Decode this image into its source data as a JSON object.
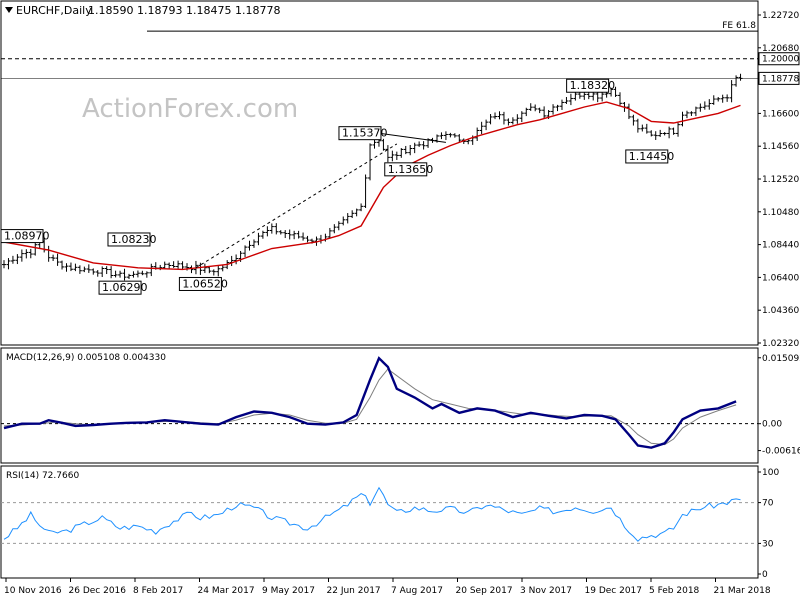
{
  "header": {
    "symbol": "EURCHF,Daily",
    "ohlc": "1.18590 1.18793 1.18475 1.18778",
    "watermark": "ActionForex.com"
  },
  "colors": {
    "candle": "#000000",
    "ma": "#cc0000",
    "macd": "#000080",
    "signal": "#808080",
    "rsi": "#1e90ff",
    "grid": "#000000"
  },
  "chart_data": [
    {
      "type": "line",
      "title": "EURCHF,Daily 1.18590 1.18793 1.18475 1.18778",
      "price_axis": {
        "ticks": [
          "1.22720",
          "1.20680",
          "1.18640",
          "1.16600",
          "1.14560",
          "1.12520",
          "1.10480",
          "1.08440",
          "1.06400",
          "1.04360",
          "1.02320"
        ],
        "ylim": [
          1.0232,
          1.2272
        ]
      },
      "x_ticks": [
        "10 Nov 2016",
        "26 Dec 2016",
        "8 Feb 2017",
        "24 Mar 2017",
        "9 May 2017",
        "22 Jun 2017",
        "7 Aug 2017",
        "20 Sep 2017",
        "3 Nov 2017",
        "19 Dec 2017",
        "5 Feb 2018",
        "21 Mar 2018"
      ],
      "levels": [
        {
          "label": "FE 61.8",
          "value": 1.2172,
          "style": "solid"
        },
        {
          "label": "1.20000",
          "value": 1.2,
          "style": "dashed"
        },
        {
          "label": "1.18778",
          "value": 1.18778,
          "style": "solid"
        }
      ],
      "annotations": [
        "1.08970",
        "1.08230",
        "1.06290",
        "1.06520",
        "1.15370",
        "1.13650",
        "1.18320",
        "1.14450"
      ],
      "series": [
        {
          "name": "EURCHF",
          "points": [
            [
              0,
              1.072
            ],
            [
              2,
              1.076
            ],
            [
              4,
              1.079
            ],
            [
              6,
              1.08
            ],
            [
              8,
              1.086
            ],
            [
              10,
              1.077
            ],
            [
              12,
              1.073
            ],
            [
              15,
              1.07
            ],
            [
              18,
              1.069
            ],
            [
              22,
              1.068
            ],
            [
              26,
              1.065
            ],
            [
              30,
              1.066
            ],
            [
              33,
              1.069
            ],
            [
              36,
              1.072
            ],
            [
              38,
              1.072
            ],
            [
              40,
              1.071
            ],
            [
              43,
              1.07
            ],
            [
              46,
              1.068
            ],
            [
              48,
              1.069
            ],
            [
              51,
              1.074
            ],
            [
              54,
              1.083
            ],
            [
              57,
              1.09
            ],
            [
              60,
              1.094
            ],
            [
              62,
              1.092
            ],
            [
              65,
              1.09
            ],
            [
              68,
              1.088
            ],
            [
              70,
              1.087
            ],
            [
              72,
              1.09
            ],
            [
              75,
              1.096
            ],
            [
              78,
              1.103
            ],
            [
              80,
              1.108
            ],
            [
              82,
              1.147
            ],
            [
              84,
              1.15
            ],
            [
              86,
              1.138
            ],
            [
              89,
              1.142
            ],
            [
              92,
              1.146
            ],
            [
              95,
              1.148
            ],
            [
              98,
              1.152
            ],
            [
              100,
              1.154
            ],
            [
              102,
              1.148
            ],
            [
              105,
              1.152
            ],
            [
              108,
              1.16
            ],
            [
              110,
              1.165
            ],
            [
              113,
              1.162
            ],
            [
              116,
              1.166
            ],
            [
              119,
              1.17
            ],
            [
              121,
              1.166
            ],
            [
              124,
              1.172
            ],
            [
              127,
              1.176
            ],
            [
              130,
              1.179
            ],
            [
              133,
              1.177
            ],
            [
              136,
              1.181
            ],
            [
              138,
              1.174
            ],
            [
              140,
              1.164
            ],
            [
              142,
              1.157
            ],
            [
              145,
              1.152
            ],
            [
              148,
              1.155
            ],
            [
              150,
              1.155
            ],
            [
              152,
              1.166
            ],
            [
              155,
              1.169
            ],
            [
              158,
              1.172
            ],
            [
              160,
              1.175
            ],
            [
              162,
              1.177
            ],
            [
              164,
              1.1878
            ]
          ]
        },
        {
          "name": "MA",
          "points": [
            [
              0,
              1.086
            ],
            [
              10,
              1.081
            ],
            [
              20,
              1.073
            ],
            [
              30,
              1.07
            ],
            [
              40,
              1.069
            ],
            [
              50,
              1.072
            ],
            [
              60,
              1.082
            ],
            [
              70,
              1.086
            ],
            [
              75,
              1.09
            ],
            [
              80,
              1.096
            ],
            [
              85,
              1.12
            ],
            [
              90,
              1.133
            ],
            [
              95,
              1.14
            ],
            [
              100,
              1.146
            ],
            [
              105,
              1.151
            ],
            [
              110,
              1.155
            ],
            [
              115,
              1.159
            ],
            [
              120,
              1.162
            ],
            [
              125,
              1.166
            ],
            [
              130,
              1.17
            ],
            [
              135,
              1.173
            ],
            [
              140,
              1.169
            ],
            [
              145,
              1.161
            ],
            [
              150,
              1.16
            ],
            [
              155,
              1.163
            ],
            [
              160,
              1.166
            ],
            [
              165,
              1.171
            ]
          ]
        }
      ]
    },
    {
      "type": "line",
      "title": "MACD(12,26,9) 0.005108 0.004330",
      "ylim": [
        -0.0074,
        0.0155
      ],
      "y_ticks": [
        "0.015092",
        "0.00",
        "-0.00616"
      ],
      "levels": [
        0.0
      ],
      "series": [
        {
          "name": "MACD",
          "points": [
            [
              0,
              -0.001
            ],
            [
              4,
              0.0
            ],
            [
              8,
              0.0
            ],
            [
              10,
              0.0008
            ],
            [
              13,
              0.0002
            ],
            [
              16,
              -0.0005
            ],
            [
              20,
              -0.0003
            ],
            [
              24,
              0.0
            ],
            [
              28,
              0.0002
            ],
            [
              32,
              0.0003
            ],
            [
              36,
              0.0008
            ],
            [
              40,
              0.0004
            ],
            [
              44,
              0.0
            ],
            [
              48,
              -0.0002
            ],
            [
              52,
              0.0015
            ],
            [
              56,
              0.0028
            ],
            [
              60,
              0.0025
            ],
            [
              64,
              0.0015
            ],
            [
              68,
              0.0
            ],
            [
              72,
              -0.0002
            ],
            [
              76,
              0.0003
            ],
            [
              79,
              0.002
            ],
            [
              82,
              0.01
            ],
            [
              84,
              0.015
            ],
            [
              86,
              0.013
            ],
            [
              88,
              0.008
            ],
            [
              92,
              0.006
            ],
            [
              96,
              0.0035
            ],
            [
              98,
              0.0045
            ],
            [
              102,
              0.0025
            ],
            [
              106,
              0.0035
            ],
            [
              110,
              0.003
            ],
            [
              114,
              0.0015
            ],
            [
              118,
              0.0025
            ],
            [
              122,
              0.0018
            ],
            [
              126,
              0.0012
            ],
            [
              130,
              0.002
            ],
            [
              134,
              0.0018
            ],
            [
              137,
              0.001
            ],
            [
              140,
              -0.0025
            ],
            [
              142,
              -0.005
            ],
            [
              145,
              -0.0055
            ],
            [
              148,
              -0.0045
            ],
            [
              150,
              -0.002
            ],
            [
              152,
              0.001
            ],
            [
              156,
              0.003
            ],
            [
              160,
              0.0035
            ],
            [
              164,
              0.0051
            ]
          ]
        },
        {
          "name": "Signal",
          "points": [
            [
              0,
              -0.0005
            ],
            [
              4,
              -0.0003
            ],
            [
              8,
              0.0
            ],
            [
              12,
              0.0004
            ],
            [
              16,
              0.0
            ],
            [
              20,
              -0.0003
            ],
            [
              24,
              -0.0001
            ],
            [
              28,
              0.0001
            ],
            [
              32,
              0.0003
            ],
            [
              36,
              0.0005
            ],
            [
              40,
              0.0005
            ],
            [
              44,
              0.0002
            ],
            [
              48,
              0.0
            ],
            [
              52,
              0.0008
            ],
            [
              56,
              0.002
            ],
            [
              60,
              0.0024
            ],
            [
              64,
              0.002
            ],
            [
              68,
              0.0008
            ],
            [
              72,
              0.0001
            ],
            [
              76,
              0.0001
            ],
            [
              79,
              0.001
            ],
            [
              82,
              0.006
            ],
            [
              84,
              0.01
            ],
            [
              86,
              0.0125
            ],
            [
              88,
              0.011
            ],
            [
              92,
              0.008
            ],
            [
              96,
              0.0055
            ],
            [
              100,
              0.0045
            ],
            [
              104,
              0.0035
            ],
            [
              108,
              0.0032
            ],
            [
              112,
              0.0028
            ],
            [
              116,
              0.0022
            ],
            [
              120,
              0.0022
            ],
            [
              124,
              0.0018
            ],
            [
              128,
              0.0016
            ],
            [
              132,
              0.0018
            ],
            [
              136,
              0.0018
            ],
            [
              140,
              -0.0005
            ],
            [
              142,
              -0.0025
            ],
            [
              145,
              -0.0045
            ],
            [
              148,
              -0.0048
            ],
            [
              150,
              -0.0035
            ],
            [
              152,
              -0.001
            ],
            [
              156,
              0.0015
            ],
            [
              160,
              0.003
            ],
            [
              164,
              0.0043
            ]
          ]
        }
      ]
    },
    {
      "type": "line",
      "title": "RSI(14) 72.7660",
      "ylim": [
        0,
        100
      ],
      "y_ticks": [
        "100",
        "70",
        "30",
        "0"
      ],
      "levels": [
        70,
        30
      ],
      "series": [
        {
          "name": "RSI",
          "points": [
            [
              0,
              35
            ],
            [
              3,
              45
            ],
            [
              6,
              58
            ],
            [
              8,
              48
            ],
            [
              10,
              40
            ],
            [
              14,
              42
            ],
            [
              18,
              49
            ],
            [
              22,
              55
            ],
            [
              26,
              45
            ],
            [
              30,
              47
            ],
            [
              34,
              42
            ],
            [
              38,
              52
            ],
            [
              42,
              60
            ],
            [
              44,
              55
            ],
            [
              48,
              58
            ],
            [
              52,
              68
            ],
            [
              56,
              65
            ],
            [
              60,
              55
            ],
            [
              64,
              50
            ],
            [
              68,
              45
            ],
            [
              72,
              55
            ],
            [
              76,
              65
            ],
            [
              80,
              78
            ],
            [
              82,
              70
            ],
            [
              84,
              85
            ],
            [
              86,
              68
            ],
            [
              88,
              60
            ],
            [
              92,
              65
            ],
            [
              96,
              62
            ],
            [
              100,
              64
            ],
            [
              104,
              60
            ],
            [
              108,
              68
            ],
            [
              112,
              63
            ],
            [
              116,
              58
            ],
            [
              120,
              64
            ],
            [
              124,
              61
            ],
            [
              128,
              66
            ],
            [
              132,
              62
            ],
            [
              136,
              66
            ],
            [
              139,
              48
            ],
            [
              142,
              35
            ],
            [
              145,
              38
            ],
            [
              148,
              40
            ],
            [
              150,
              45
            ],
            [
              152,
              58
            ],
            [
              156,
              65
            ],
            [
              160,
              68
            ],
            [
              164,
              72.77
            ]
          ]
        }
      ]
    }
  ]
}
